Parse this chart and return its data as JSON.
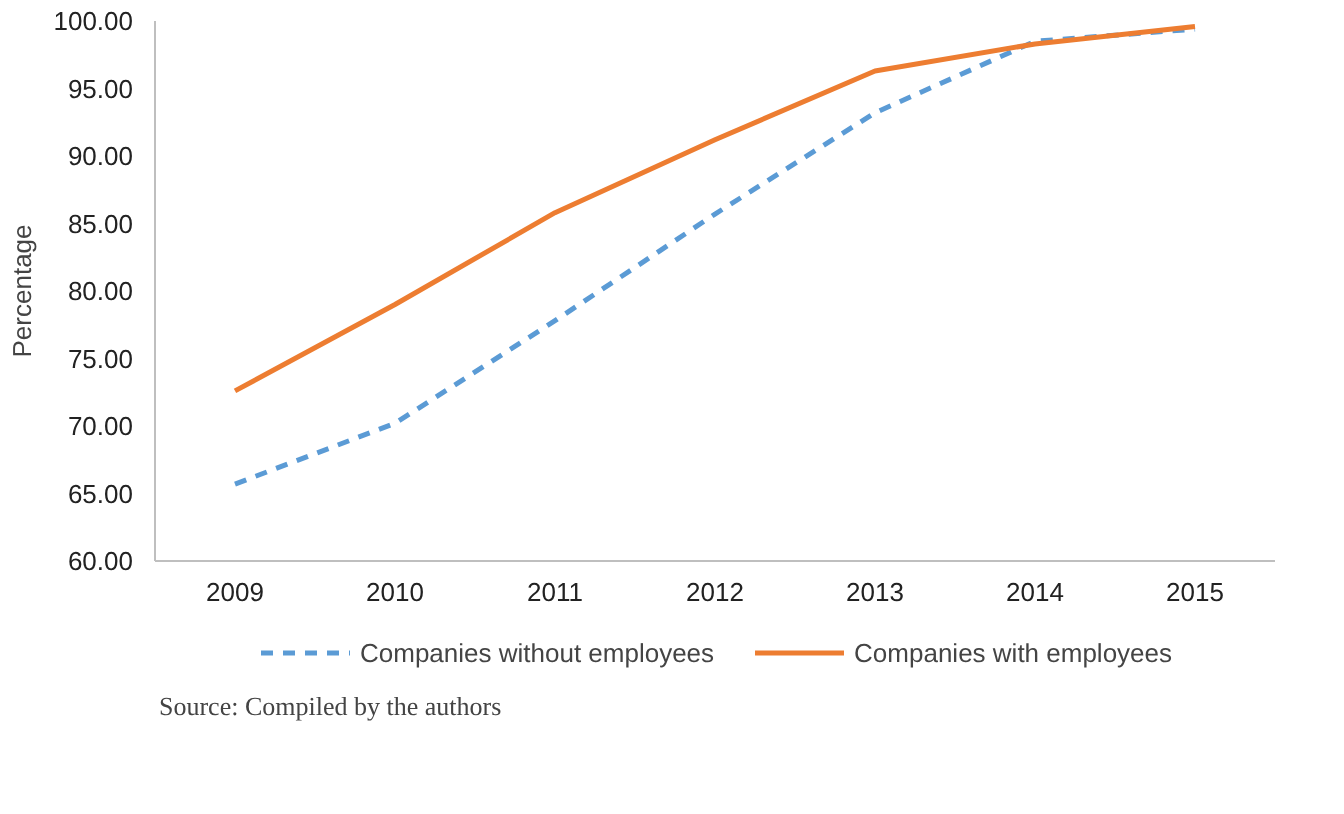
{
  "chart_data": {
    "type": "line",
    "ylabel": "Percentage",
    "categories": [
      "2009",
      "2010",
      "2011",
      "2012",
      "2013",
      "2014",
      "2015"
    ],
    "series": [
      {
        "name": "Companies without employees",
        "color": "#5b9bd5",
        "line_style": "dashed",
        "values": [
          65.7,
          70.2,
          77.8,
          85.7,
          93.2,
          98.5,
          99.4
        ]
      },
      {
        "name": "Companies with employees",
        "color": "#ed7d31",
        "line_style": "solid",
        "values": [
          72.6,
          79.0,
          85.8,
          91.2,
          96.3,
          98.3,
          99.6
        ]
      }
    ],
    "ylim": [
      60,
      100
    ],
    "yticks": [
      {
        "value": 60,
        "label": "60.00"
      },
      {
        "value": 65,
        "label": "65.00"
      },
      {
        "value": 70,
        "label": "70.00"
      },
      {
        "value": 75,
        "label": "75.00"
      },
      {
        "value": 80,
        "label": "80.00"
      },
      {
        "value": 85,
        "label": "85.00"
      },
      {
        "value": 90,
        "label": "90.00"
      },
      {
        "value": 95,
        "label": "95.00"
      },
      {
        "value": 100,
        "label": "100.00"
      }
    ],
    "grid": false,
    "legend": "bottom",
    "marker": "none",
    "annotations": [
      "Source: Compiled by the authors"
    ]
  }
}
